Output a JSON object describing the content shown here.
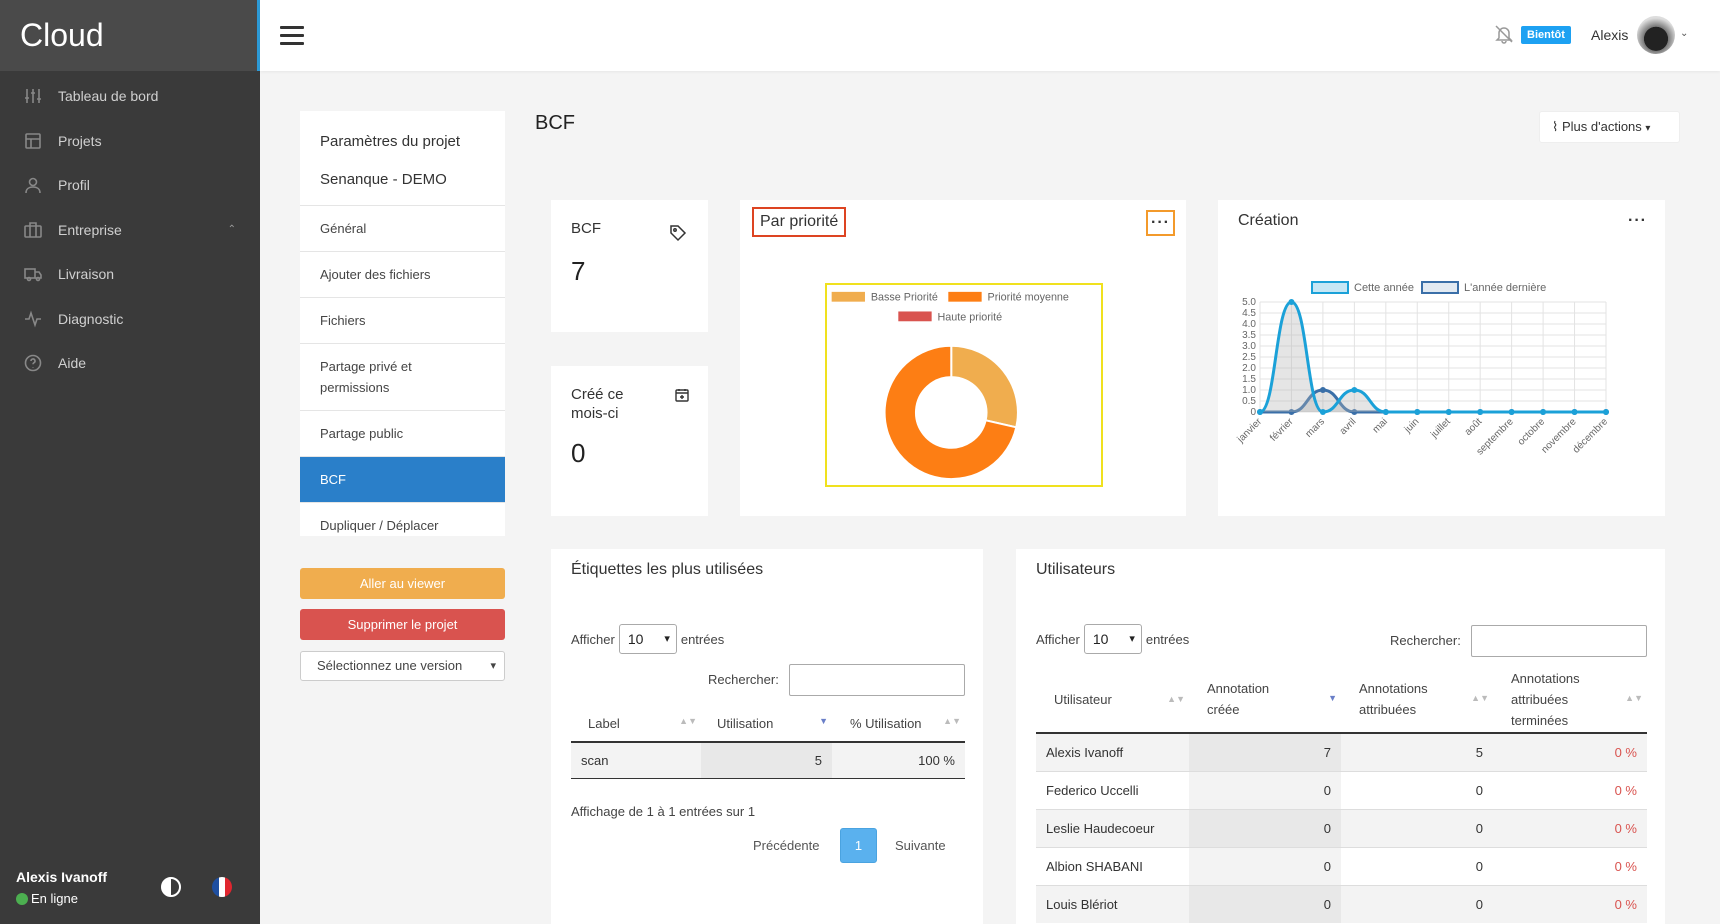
{
  "brand": "Cloud",
  "sidebar": {
    "items": [
      {
        "label": "Tableau de bord",
        "icon": "sliders-icon"
      },
      {
        "label": "Projets",
        "icon": "projects-icon"
      },
      {
        "label": "Profil",
        "icon": "user-icon"
      },
      {
        "label": "Entreprise",
        "icon": "building-icon"
      },
      {
        "label": "Livraison",
        "icon": "truck-icon"
      },
      {
        "label": "Diagnostic",
        "icon": "activity-icon"
      },
      {
        "label": "Aide",
        "icon": "help-icon"
      }
    ],
    "user_name": "Alexis Ivanoff",
    "user_status": "En ligne"
  },
  "topbar": {
    "badge": "Bientôt",
    "user": "Alexis"
  },
  "project_nav": {
    "title1": "Paramètres du projet",
    "title2": "Senanque - DEMO",
    "items": [
      "Général",
      "Ajouter des fichiers",
      "Fichiers",
      "Partage privé et permissions",
      "Partage public",
      "BCF",
      "Dupliquer / Déplacer"
    ],
    "active_index": 5
  },
  "buttons": {
    "viewer": "Aller au viewer",
    "delete": "Supprimer le projet",
    "version_select": "Sélectionnez une version"
  },
  "page": {
    "title": "BCF",
    "more_actions": "Plus d'actions"
  },
  "stats": {
    "bcf_label": "BCF",
    "bcf_value": "7",
    "month_label_1": "Créé ce",
    "month_label_2": "mois-ci",
    "month_value": "0"
  },
  "priority_card": {
    "title": "Par priorité"
  },
  "creation_card": {
    "title": "Création"
  },
  "tags": {
    "title": "Étiquettes les plus utilisées",
    "show": "Afficher",
    "entries": "entrées",
    "page_size": "10",
    "search": "Rechercher:",
    "headers": [
      "Label",
      "Utilisation",
      "% Utilisation"
    ],
    "rows": [
      {
        "label": "scan",
        "usage": "5",
        "pct": "100 %"
      }
    ],
    "info": "Affichage de 1 à 1 entrées sur 1",
    "prev": "Précédente",
    "page": "1",
    "next": "Suivante"
  },
  "users": {
    "title": "Utilisateurs",
    "show": "Afficher",
    "entries": "entrées",
    "page_size": "10",
    "search": "Rechercher:",
    "headers": [
      "Utilisateur",
      "Annotation créée",
      "Annotations attribuées",
      "Annotations attribuées terminées"
    ],
    "rows": [
      {
        "name": "Alexis Ivanoff",
        "created": "7",
        "assigned": "5",
        "done": "0 %"
      },
      {
        "name": "Federico Uccelli",
        "created": "0",
        "assigned": "0",
        "done": "0 %"
      },
      {
        "name": "Leslie Haudecoeur",
        "created": "0",
        "assigned": "0",
        "done": "0 %"
      },
      {
        "name": "Albion SHABANI",
        "created": "0",
        "assigned": "0",
        "done": "0 %"
      },
      {
        "name": "Louis Blériot",
        "created": "0",
        "assigned": "0",
        "done": "0 %"
      }
    ]
  },
  "chart_data": [
    {
      "type": "pie",
      "categories": [
        "Basse Priorité",
        "Priorité moyenne",
        "Haute priorité"
      ],
      "values": [
        2,
        5,
        0
      ],
      "colors": [
        "#f0ad4e",
        "#fd7e14",
        "#d9534f"
      ],
      "legend": "top",
      "donut": true
    },
    {
      "type": "line",
      "x": [
        "janvier",
        "février",
        "mars",
        "avril",
        "mai",
        "juin",
        "juillet",
        "août",
        "septembre",
        "octobre",
        "novembre",
        "décembre"
      ],
      "series": [
        {
          "name": "Cette année",
          "values": [
            0,
            5,
            0,
            1,
            0,
            0,
            0,
            0,
            0,
            0,
            0,
            0
          ],
          "color": "#1ba1d8"
        },
        {
          "name": "L'année dernière",
          "values": [
            0,
            0,
            1,
            0,
            0,
            0,
            0,
            0,
            0,
            0,
            0,
            0
          ],
          "color": "#3a6fa8"
        }
      ],
      "ylim": [
        0,
        5
      ],
      "yticks": [
        "0",
        "0.5",
        "1.0",
        "1.5",
        "2.0",
        "2.5",
        "3.0",
        "3.5",
        "4.0",
        "4.5",
        "5.0"
      ],
      "grid": true,
      "legend": "top"
    }
  ]
}
